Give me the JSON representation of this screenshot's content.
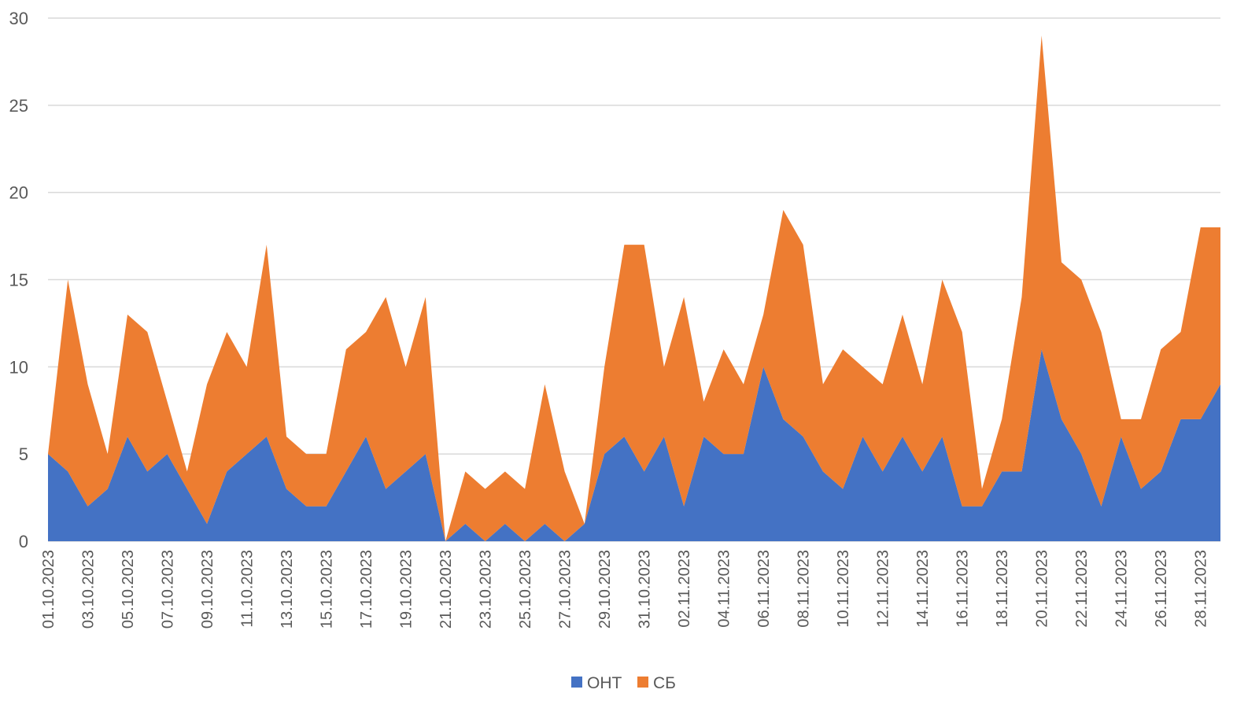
{
  "chart_data": {
    "type": "area",
    "stacked": true,
    "title": "",
    "xlabel": "",
    "ylabel": "",
    "ylim": [
      0,
      30
    ],
    "yticks": [
      0,
      5,
      10,
      15,
      20,
      25,
      30
    ],
    "grid": true,
    "legend_position": "bottom",
    "x": [
      "01.10.2023",
      "02.10.2023",
      "03.10.2023",
      "04.10.2023",
      "05.10.2023",
      "06.10.2023",
      "07.10.2023",
      "08.10.2023",
      "09.10.2023",
      "10.10.2023",
      "11.10.2023",
      "12.10.2023",
      "13.10.2023",
      "14.10.2023",
      "15.10.2023",
      "16.10.2023",
      "17.10.2023",
      "18.10.2023",
      "19.10.2023",
      "20.10.2023",
      "21.10.2023",
      "22.10.2023",
      "23.10.2023",
      "24.10.2023",
      "25.10.2023",
      "26.10.2023",
      "27.10.2023",
      "28.10.2023",
      "29.10.2023",
      "30.10.2023",
      "31.10.2023",
      "01.11.2023",
      "02.11.2023",
      "03.11.2023",
      "04.11.2023",
      "05.11.2023",
      "06.11.2023",
      "07.11.2023",
      "08.11.2023",
      "09.11.2023",
      "10.11.2023",
      "11.11.2023",
      "12.11.2023",
      "13.11.2023",
      "14.11.2023",
      "15.11.2023",
      "16.11.2023",
      "17.11.2023",
      "18.11.2023",
      "19.11.2023",
      "20.11.2023",
      "21.11.2023",
      "22.11.2023",
      "23.11.2023",
      "24.11.2023",
      "25.11.2023",
      "26.11.2023",
      "27.11.2023",
      "28.11.2023",
      "29.11.2023"
    ],
    "series": [
      {
        "name": "ОНТ",
        "color": "#4472C4",
        "values": [
          5,
          4,
          2,
          3,
          6,
          4,
          5,
          3,
          1,
          4,
          5,
          6,
          3,
          2,
          2,
          4,
          6,
          3,
          4,
          5,
          0,
          1,
          0,
          1,
          0,
          1,
          0,
          1,
          5,
          6,
          4,
          6,
          2,
          6,
          5,
          5,
          10,
          7,
          6,
          4,
          3,
          6,
          4,
          6,
          4,
          6,
          2,
          2,
          4,
          4,
          11,
          7,
          5,
          2,
          6,
          3,
          4,
          7,
          7,
          9
        ]
      },
      {
        "name": "СБ",
        "color": "#ED7D31",
        "values": [
          0,
          11,
          7,
          2,
          7,
          8,
          3,
          1,
          8,
          8,
          5,
          11,
          3,
          3,
          3,
          7,
          6,
          11,
          6,
          9,
          0,
          3,
          3,
          3,
          3,
          8,
          4,
          0,
          5,
          11,
          13,
          4,
          12,
          2,
          6,
          4,
          3,
          12,
          11,
          5,
          8,
          4,
          5,
          7,
          5,
          9,
          10,
          1,
          3,
          10,
          18,
          9,
          10,
          10,
          1,
          4,
          7,
          5,
          11,
          9
        ]
      }
    ]
  }
}
